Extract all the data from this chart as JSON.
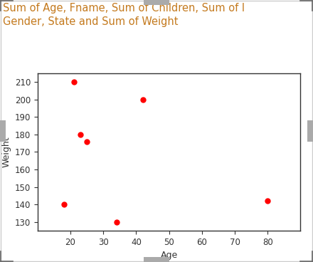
{
  "title_line1": "Sum of Age, Fname, Sum of Children, Sum of I",
  "title_line2": "Gender, State and Sum of Weight",
  "xlabel": "Age",
  "ylabel": "Weight",
  "scatter_x": [
    18,
    21,
    23,
    25,
    34,
    42,
    80
  ],
  "scatter_y": [
    140,
    210,
    180,
    176,
    130,
    200,
    142
  ],
  "dot_color": "#FF0000",
  "dot_size": 25,
  "xlim": [
    10,
    90
  ],
  "ylim": [
    125,
    215
  ],
  "xticks": [
    20,
    30,
    40,
    50,
    60,
    70,
    80
  ],
  "yticks": [
    130,
    140,
    150,
    160,
    170,
    180,
    190,
    200,
    210
  ],
  "bg_color": "#FFFFFF",
  "outer_bg": "#FFFFFF",
  "title_color": "#C47A1E",
  "title_fontsize": 10.5,
  "axis_label_fontsize": 9,
  "tick_fontsize": 8.5,
  "handle_color": "#AAAAAA",
  "spine_color": "#333333"
}
